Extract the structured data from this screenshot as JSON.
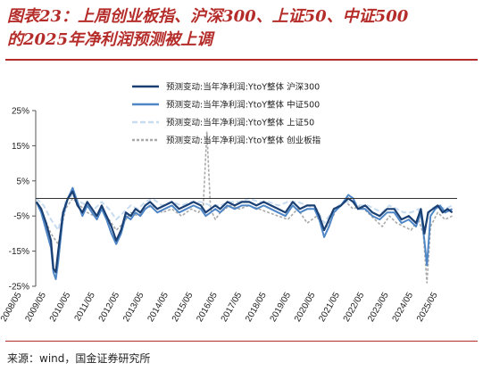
{
  "figure": {
    "title_line1": "图表23：上周创业板指、沪深300、上证50、中证500",
    "title_line2": "的2025年净利润预测被上调",
    "source": "来源：wind，国金证券研究所"
  },
  "chart_data": {
    "type": "line",
    "title": "图表23：上周创业板指、沪深300、上证50、中证500的2025年净利润预测被上调",
    "xlabel": "",
    "ylabel": "",
    "ylim": [
      -25,
      25
    ],
    "yticks": [
      25,
      15,
      5,
      -5,
      -15,
      -25
    ],
    "ytick_labels": [
      "25%",
      "15%",
      "5%",
      "-5%",
      "-15%",
      "-25%"
    ],
    "xticks": [
      "2008/05",
      "2009/05",
      "2010/05",
      "2011/05",
      "2012/05",
      "2013/05",
      "2014/05",
      "2015/05",
      "2016/05",
      "2017/05",
      "2018/05",
      "2019/05",
      "2020/05",
      "2021/05",
      "2022/05",
      "2023/05",
      "2024/05",
      "2025/05"
    ],
    "x_units": "year (decimal)",
    "grid": false,
    "legend_position": "top",
    "colors": {
      "hs300": "#1a3f73",
      "zz500": "#4f86c6",
      "sz50": "#c8dcf0",
      "cyb": "#a9a9a9"
    },
    "series": [
      {
        "name": "预测变动:当年净利润:YtoY整体 沪深300",
        "x": [
          2008.4,
          2008.6,
          2008.8,
          2009.0,
          2009.1,
          2009.2,
          2009.3,
          2009.5,
          2009.7,
          2009.9,
          2010.1,
          2010.3,
          2010.5,
          2010.7,
          2010.9,
          2011.1,
          2011.3,
          2011.5,
          2011.7,
          2011.9,
          2012.1,
          2012.3,
          2012.5,
          2012.7,
          2012.9,
          2013.1,
          2013.4,
          2013.7,
          2014.0,
          2014.3,
          2014.6,
          2014.9,
          2015.2,
          2015.4,
          2015.6,
          2015.8,
          2016.0,
          2016.3,
          2016.6,
          2016.9,
          2017.2,
          2017.5,
          2017.8,
          2018.1,
          2018.4,
          2018.7,
          2019.0,
          2019.3,
          2019.6,
          2019.9,
          2020.1,
          2020.3,
          2020.5,
          2020.7,
          2021.0,
          2021.3,
          2021.5,
          2021.7,
          2022.0,
          2022.3,
          2022.6,
          2022.9,
          2023.2,
          2023.5,
          2023.8,
          2024.1,
          2024.3,
          2024.45,
          2024.6,
          2024.8,
          2025.0,
          2025.2,
          2025.4,
          2025.6
        ],
        "values": [
          -1,
          -3,
          -7,
          -12,
          -20,
          -21,
          -15,
          -4,
          0,
          2,
          -2,
          -4,
          -1,
          -3,
          -5,
          -2,
          -5,
          -8,
          -12,
          -9,
          -4,
          -5,
          -3,
          -4,
          -2,
          -1,
          -3,
          -2,
          -1,
          -3,
          -2,
          -1,
          -2,
          -4,
          -3,
          -2,
          -3,
          -1,
          -2,
          -1,
          -1,
          -2,
          -1,
          -2,
          -3,
          -4,
          -1,
          -3,
          -2,
          -2,
          -5,
          -9,
          -6,
          -3,
          -2,
          0,
          -1,
          -3,
          -2,
          -4,
          -5,
          -3,
          -3,
          -6,
          -5,
          -7,
          -3,
          -10,
          -4,
          -3,
          -2,
          -4,
          -3,
          -4
        ]
      },
      {
        "name": "预测变动:当年净利润:YtoY整体 中证500",
        "x": [
          2008.4,
          2008.6,
          2008.8,
          2009.0,
          2009.1,
          2009.2,
          2009.3,
          2009.5,
          2009.7,
          2009.9,
          2010.1,
          2010.3,
          2010.5,
          2010.7,
          2010.9,
          2011.1,
          2011.3,
          2011.5,
          2011.7,
          2011.9,
          2012.1,
          2012.3,
          2012.5,
          2012.7,
          2012.9,
          2013.1,
          2013.4,
          2013.7,
          2014.0,
          2014.3,
          2014.6,
          2014.9,
          2015.2,
          2015.4,
          2015.6,
          2015.8,
          2016.0,
          2016.3,
          2016.6,
          2016.9,
          2017.2,
          2017.5,
          2017.8,
          2018.1,
          2018.4,
          2018.7,
          2019.0,
          2019.3,
          2019.6,
          2019.9,
          2020.1,
          2020.3,
          2020.5,
          2020.7,
          2021.0,
          2021.3,
          2021.5,
          2021.7,
          2022.0,
          2022.3,
          2022.6,
          2022.9,
          2023.2,
          2023.5,
          2023.8,
          2024.1,
          2024.3,
          2024.45,
          2024.55,
          2024.7,
          2024.9,
          2025.1,
          2025.3,
          2025.6
        ],
        "values": [
          -1,
          -4,
          -9,
          -14,
          -21,
          -23,
          -18,
          -5,
          0,
          3,
          -1,
          -5,
          -2,
          -4,
          -6,
          -3,
          -6,
          -10,
          -13,
          -10,
          -5,
          -6,
          -4,
          -5,
          -3,
          -2,
          -4,
          -3,
          -2,
          -4,
          -3,
          -2,
          -3,
          -5,
          -4,
          -3,
          -4,
          -2,
          -3,
          -2,
          -2,
          -3,
          -2,
          -3,
          -4,
          -5,
          -2,
          -4,
          -3,
          -3,
          -6,
          -11,
          -8,
          -4,
          -2,
          1,
          0,
          -3,
          -3,
          -5,
          -6,
          -4,
          -4,
          -7,
          -6,
          -8,
          -4,
          -12,
          -19,
          -5,
          -3,
          -2,
          -4,
          -3
        ]
      },
      {
        "name": "预测变动:当年净利润:YtoY整体 上证50",
        "x": [
          2008.4,
          2008.7,
          2009.0,
          2009.3,
          2009.6,
          2009.9,
          2010.2,
          2010.5,
          2010.8,
          2011.1,
          2011.4,
          2011.7,
          2012.0,
          2012.3,
          2012.6,
          2012.9,
          2013.2,
          2013.6,
          2014.0,
          2014.4,
          2014.8,
          2015.2,
          2015.6,
          2016.0,
          2016.4,
          2016.8,
          2017.2,
          2017.6,
          2018.0,
          2018.4,
          2018.8,
          2019.2,
          2019.6,
          2020.0,
          2020.3,
          2020.6,
          2020.9,
          2021.2,
          2021.5,
          2021.8,
          2022.1,
          2022.4,
          2022.7,
          2023.0,
          2023.3,
          2023.6,
          2023.9,
          2024.2,
          2024.45,
          2024.7,
          2025.0,
          2025.3,
          2025.6
        ],
        "values": [
          0,
          -2,
          -6,
          -9,
          -1,
          1,
          -1,
          -2,
          -3,
          -1,
          -3,
          -6,
          -4,
          -2,
          -3,
          -1,
          0,
          -2,
          -1,
          -2,
          -1,
          -1,
          -2,
          -2,
          -1,
          -1,
          0,
          -1,
          -1,
          -2,
          -1,
          -1,
          -2,
          -3,
          -7,
          -4,
          -2,
          -1,
          -1,
          -2,
          -2,
          -3,
          -4,
          -2,
          -3,
          -4,
          -4,
          -3,
          -9,
          -3,
          -2,
          -3,
          -2
        ]
      },
      {
        "name": "预测变动:当年净利润:YtoY整体 创业板指",
        "x": [
          2008.4,
          2008.7,
          2009.0,
          2009.3,
          2009.6,
          2009.9,
          2010.2,
          2010.5,
          2010.8,
          2011.1,
          2011.4,
          2011.7,
          2012.0,
          2012.3,
          2012.6,
          2012.9,
          2013.2,
          2013.6,
          2014.0,
          2014.4,
          2014.8,
          2015.1,
          2015.3,
          2015.45,
          2015.6,
          2015.8,
          2016.0,
          2016.4,
          2016.8,
          2017.2,
          2017.6,
          2018.0,
          2018.4,
          2018.8,
          2019.2,
          2019.6,
          2020.0,
          2020.3,
          2020.6,
          2020.9,
          2021.2,
          2021.5,
          2021.8,
          2022.1,
          2022.4,
          2022.7,
          2023.0,
          2023.3,
          2023.6,
          2023.9,
          2024.2,
          2024.4,
          2024.55,
          2024.7,
          2025.0,
          2025.3,
          2025.6
        ],
        "values": [
          -1,
          -5,
          -10,
          -13,
          -3,
          0,
          -2,
          -4,
          -5,
          -3,
          -6,
          -9,
          -7,
          -4,
          -5,
          -3,
          -2,
          -4,
          -3,
          -5,
          -3,
          -4,
          -2,
          19,
          -3,
          -6,
          -4,
          -2,
          -3,
          -2,
          -3,
          -4,
          -5,
          -6,
          -3,
          -7,
          -5,
          -9,
          -6,
          -2,
          -1,
          -3,
          -2,
          -4,
          -6,
          -8,
          -5,
          -7,
          -8,
          -9,
          -6,
          -10,
          -24,
          -8,
          -4,
          -6,
          -5
        ]
      }
    ]
  }
}
